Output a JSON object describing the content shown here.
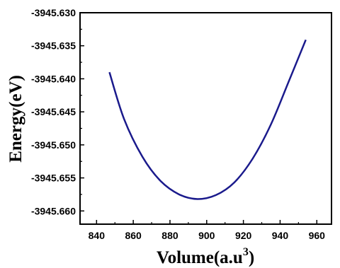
{
  "chart_data": {
    "type": "line",
    "title": "",
    "xlabel": "Volume(a.u",
    "xlabel_superscript": "3",
    "xlabel_suffix": ")",
    "ylabel": "Energy(eV)",
    "xlim": [
      831,
      968
    ],
    "ylim": [
      -3945.662,
      -3945.63
    ],
    "xticks": [
      840,
      860,
      880,
      900,
      920,
      940,
      960
    ],
    "xtick_labels": [
      "840",
      "860",
      "880",
      "900",
      "920",
      "940",
      "960"
    ],
    "yticks": [
      -3945.63,
      -3945.635,
      -3945.64,
      -3945.645,
      -3945.65,
      -3945.655,
      -3945.66
    ],
    "ytick_labels": [
      "-3945.630",
      "-3945.635",
      "-3945.640",
      "-3945.645",
      "-3945.650",
      "-3945.655",
      "-3945.660"
    ],
    "grid": false,
    "series": [
      {
        "color": "#1a1a8c",
        "x": [
          847,
          855,
          865,
          875,
          885,
          895,
          905,
          915,
          925,
          935,
          945,
          954
        ],
        "y": [
          -3945.639,
          -3945.6461,
          -3945.6518,
          -3945.6555,
          -3945.6575,
          -3945.6582,
          -3945.6576,
          -3945.6557,
          -3945.6521,
          -3945.6469,
          -3945.6402,
          -3945.6341
        ]
      }
    ]
  }
}
